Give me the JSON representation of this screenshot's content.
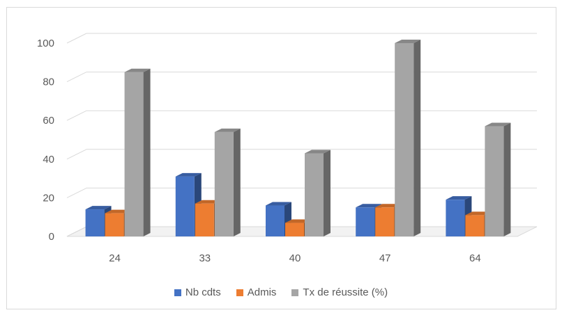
{
  "chart_data": {
    "type": "bar",
    "style": "3d-clustered-column",
    "categories": [
      "24",
      "33",
      "40",
      "47",
      "64"
    ],
    "series": [
      {
        "name": "Nb cdts",
        "color": "#4472c4",
        "values": [
          14,
          31,
          16,
          15,
          19
        ]
      },
      {
        "name": "Admis",
        "color": "#ed7d31",
        "values": [
          12,
          17,
          7,
          15,
          11
        ]
      },
      {
        "name": "Tx de réussite (%)",
        "color": "#a5a5a5",
        "values": [
          85,
          54,
          43,
          100,
          57
        ]
      }
    ],
    "ylim": [
      0,
      100
    ],
    "yticks": [
      0,
      20,
      40,
      60,
      80,
      100
    ],
    "grid": true,
    "legend_position": "bottom"
  }
}
